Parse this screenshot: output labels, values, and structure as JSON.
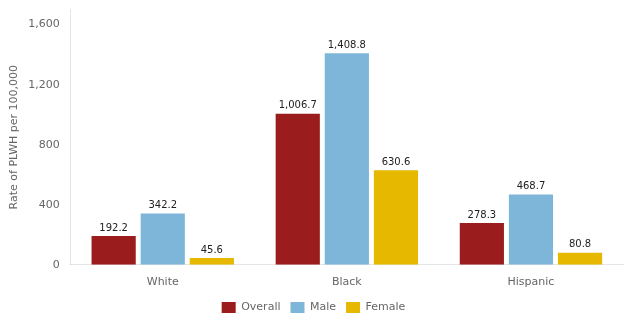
{
  "chart_data": {
    "type": "bar",
    "categories": [
      "White",
      "Black",
      "Hispanic"
    ],
    "series": [
      {
        "name": "Overall",
        "color": "#9B1C1C",
        "values": [
          192.2,
          1006.7,
          278.3
        ],
        "value_labels": [
          "192.2",
          "1,006.7",
          "278.3"
        ]
      },
      {
        "name": "Male",
        "color": "#7EB6D9",
        "values": [
          342.2,
          1408.8,
          468.7
        ],
        "value_labels": [
          "342.2",
          "1,408.8",
          "468.7"
        ]
      },
      {
        "name": "Female",
        "color": "#E6B800",
        "values": [
          45.6,
          630.6,
          80.8
        ],
        "value_labels": [
          "45.6",
          "630.6",
          "80.8"
        ]
      }
    ],
    "ylabel": "Rate of PLWH per 100,000",
    "ylim": [
      0,
      1700
    ],
    "yticks": [
      0,
      400,
      800,
      {
        "value": 1200,
        "label": "1,200"
      },
      {
        "value": 1600,
        "label": "1,600"
      }
    ],
    "grid": false,
    "legend": "bottom",
    "data_labels": true
  }
}
